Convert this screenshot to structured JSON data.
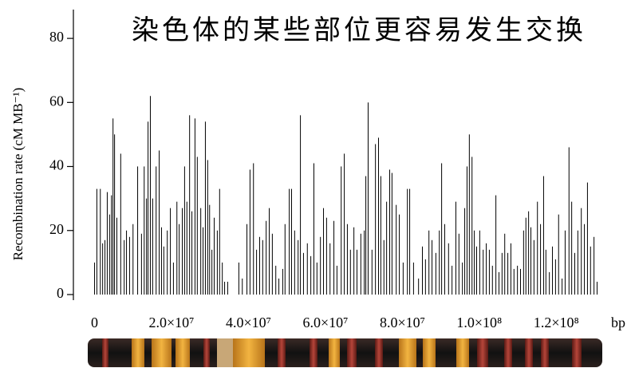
{
  "chart_data": {
    "type": "spike",
    "title": "染色体的某些部位更容易发生交换",
    "y_label": "Recombination rate (cM MB⁻¹)",
    "x_label": "bp",
    "color": "#000000",
    "xlim": [
      -5500000.0,
      139000000.0
    ],
    "ylim": [
      -1.5,
      89
    ],
    "xticks": [
      0,
      {
        "value": 20000000.0,
        "label": "2.0×10⁷"
      },
      {
        "value": 40000000.0,
        "label": "4.0×10⁷"
      },
      {
        "value": 60000000.0,
        "label": "6.0×10⁷"
      },
      {
        "value": 80000000.0,
        "label": "8.0×10⁷"
      },
      {
        "value": 100000000.0,
        "label": "1.0×10⁸"
      },
      {
        "value": 120000000.0,
        "label": "1.2×10⁸"
      }
    ],
    "yticks": [
      0,
      20,
      40,
      60,
      80
    ],
    "x": [
      0,
      600000.0,
      1500000.0,
      2100000.0,
      2700000.0,
      3300000.0,
      3900000.0,
      4400000.0,
      4800000.0,
      5200000.0,
      5800000.0,
      6800000.0,
      7700000.0,
      8300000.0,
      9100000.0,
      10000000.0,
      11200000.0,
      12200000.0,
      12900000.0,
      13500000.0,
      13900000.0,
      14500000.0,
      15100000.0,
      16000000.0,
      16800000.0,
      17400000.0,
      18000000.0,
      18900000.0,
      19700000.0,
      20500000.0,
      21400000.0,
      22000000.0,
      22800000.0,
      23400000.0,
      24000000.0,
      24700000.0,
      25300000.0,
      26100000.0,
      26700000.0,
      27600000.0,
      28200000.0,
      28800000.0,
      29400000.0,
      29900000.0,
      30500000.0,
      31100000.0,
      31900000.0,
      32500000.0,
      33200000.0,
      33800000.0,
      34600000.0,
      37500000.0,
      38400000.0,
      39600000.0,
      40400000.0,
      41300000.0,
      42100000.0,
      42900000.0,
      43700000.0,
      44600000.0,
      45400000.0,
      46200000.0,
      47100000.0,
      47900000.0,
      48900000.0,
      49500000.0,
      50600000.0,
      51200000.0,
      52000000.0,
      52900000.0,
      53500000.0,
      54300000.0,
      55300000.0,
      56200000.0,
      57000000.0,
      57800000.0,
      58700000.0,
      59500000.0,
      60300000.0,
      61200000.0,
      62200000.0,
      63000000.0,
      64100000.0,
      64900000.0,
      65700000.0,
      66500000.0,
      67400000.0,
      68200000.0,
      69200000.0,
      70100000.0,
      70500000.0,
      71100000.0,
      72100000.0,
      73000000.0,
      73800000.0,
      74400000.0,
      75200000.0,
      75900000.0,
      76700000.0,
      77300000.0,
      78400000.0,
      79200000.0,
      80200000.0,
      81300000.0,
      81900000.0,
      82900000.0,
      84200000.0,
      85200000.0,
      86000000.0,
      86900000.0,
      87700000.0,
      88700000.0,
      89600000.0,
      90200000.0,
      91000000.0,
      92000000.0,
      92900000.0,
      93900000.0,
      94700000.0,
      95600000.0,
      96200000.0,
      96800000.0,
      97400000.0,
      98100000.0,
      98700000.0,
      99300000.0,
      100100000.0,
      101000000.0,
      101800000.0,
      102600000.0,
      103400000.0,
      104300000.0,
      105100000.0,
      105900000.0,
      106600000.0,
      107400000.0,
      108200000.0,
      109000000.0,
      109900000.0,
      110700000.0,
      111500000.0,
      112100000.0,
      112800000.0,
      113400000.0,
      114200000.0,
      115100000.0,
      115900000.0,
      116700000.0,
      117300000.0,
      118200000.0,
      119000000.0,
      119800000.0,
      120600000.0,
      121500000.0,
      122300000.0,
      123300000.0,
      124000000.0,
      124800000.0,
      125600000.0,
      126500000.0,
      127300000.0,
      128100000.0,
      128900000.0,
      129800000.0,
      130600000.0
    ],
    "values": [
      10,
      33,
      33,
      16,
      17,
      32,
      25,
      31,
      55,
      50,
      24,
      44,
      17,
      20,
      18,
      22,
      40,
      19,
      40,
      30,
      54,
      62,
      30,
      40,
      45,
      21,
      15,
      20,
      27,
      10,
      29,
      22,
      27,
      40,
      29,
      56,
      26,
      55,
      43,
      27,
      21,
      54,
      42,
      28,
      14,
      24,
      20,
      33,
      10,
      4,
      4,
      10,
      5,
      22,
      39,
      41,
      14,
      18,
      17,
      23,
      27,
      19,
      9,
      5,
      8,
      22,
      33,
      33,
      20,
      17,
      56,
      13,
      16,
      12,
      41,
      10,
      18,
      27,
      24,
      16,
      23,
      9,
      40,
      44,
      22,
      14,
      21,
      14,
      19,
      20,
      37,
      60,
      14,
      47,
      49,
      37,
      17,
      29,
      39,
      38,
      28,
      25,
      10,
      33,
      33,
      10,
      5,
      15,
      11,
      20,
      17,
      13,
      20,
      41,
      22,
      16,
      9,
      29,
      19,
      10,
      27,
      40,
      50,
      43,
      20,
      15,
      20,
      14,
      16,
      14,
      9,
      31,
      7,
      13,
      19,
      13,
      16,
      8,
      9,
      8,
      20,
      24,
      26,
      21,
      17,
      29,
      22,
      37,
      14,
      7,
      15,
      11,
      25,
      5,
      20,
      46,
      29,
      13,
      20,
      27,
      22,
      35,
      15,
      18,
      4
    ]
  }
}
